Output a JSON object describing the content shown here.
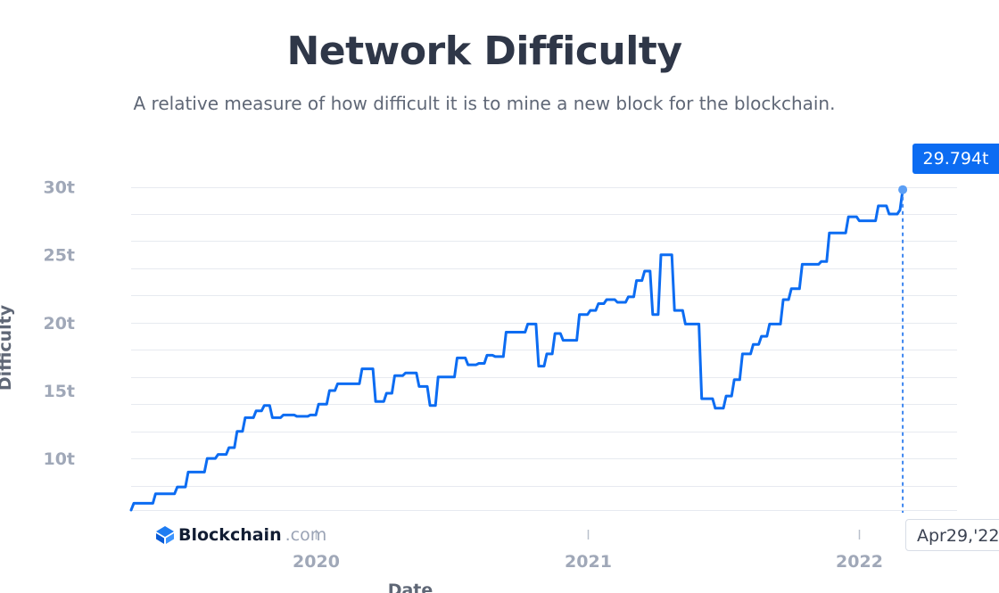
{
  "chart_data": {
    "type": "line",
    "title": "Network Difficulty",
    "subtitle": "A relative measure of how difficult it is to mine a new block for the blockchain.",
    "xlabel": "Date",
    "ylabel": "Difficulty",
    "x_tick_labels": [
      "2020",
      "2021",
      "2022"
    ],
    "y_ticks": [
      {
        "value": 10,
        "label": "10t"
      },
      {
        "value": 15,
        "label": "15t"
      },
      {
        "value": 20,
        "label": "20t"
      },
      {
        "value": 25,
        "label": "25t"
      },
      {
        "value": 30,
        "label": "30t"
      }
    ],
    "ylim": [
      6.2,
      30.3
    ],
    "xlim": [
      2019.32,
      2022.36
    ],
    "grid": true,
    "series": [
      {
        "name": "Difficulty",
        "color": "#0c6cf2",
        "points": [
          [
            2019.32,
            6.2
          ],
          [
            2019.33,
            6.7
          ],
          [
            2019.4,
            6.7
          ],
          [
            2019.41,
            7.4
          ],
          [
            2019.48,
            7.4
          ],
          [
            2019.49,
            7.9
          ],
          [
            2019.52,
            7.9
          ],
          [
            2019.53,
            9.0
          ],
          [
            2019.59,
            9.0
          ],
          [
            2019.6,
            10.0
          ],
          [
            2019.63,
            10.0
          ],
          [
            2019.64,
            10.3
          ],
          [
            2019.67,
            10.3
          ],
          [
            2019.68,
            10.8
          ],
          [
            2019.7,
            10.8
          ],
          [
            2019.71,
            12.0
          ],
          [
            2019.73,
            12.0
          ],
          [
            2019.74,
            13.0
          ],
          [
            2019.77,
            13.0
          ],
          [
            2019.78,
            13.5
          ],
          [
            2019.8,
            13.5
          ],
          [
            2019.81,
            13.9
          ],
          [
            2019.83,
            13.9
          ],
          [
            2019.84,
            13.0
          ],
          [
            2019.87,
            13.0
          ],
          [
            2019.88,
            13.2
          ],
          [
            2019.92,
            13.2
          ],
          [
            2019.93,
            13.1
          ],
          [
            2019.97,
            13.1
          ],
          [
            2019.98,
            13.2
          ],
          [
            2020.0,
            13.2
          ],
          [
            2020.01,
            14.0
          ],
          [
            2020.04,
            14.0
          ],
          [
            2020.05,
            15.0
          ],
          [
            2020.07,
            15.0
          ],
          [
            2020.08,
            15.5
          ],
          [
            2020.16,
            15.5
          ],
          [
            2020.17,
            16.6
          ],
          [
            2020.21,
            16.6
          ],
          [
            2020.22,
            14.2
          ],
          [
            2020.25,
            14.2
          ],
          [
            2020.26,
            14.8
          ],
          [
            2020.28,
            14.8
          ],
          [
            2020.29,
            16.1
          ],
          [
            2020.32,
            16.1
          ],
          [
            2020.33,
            16.3
          ],
          [
            2020.37,
            16.3
          ],
          [
            2020.38,
            15.3
          ],
          [
            2020.41,
            15.3
          ],
          [
            2020.42,
            13.9
          ],
          [
            2020.44,
            13.9
          ],
          [
            2020.45,
            16.0
          ],
          [
            2020.51,
            16.0
          ],
          [
            2020.52,
            17.4
          ],
          [
            2020.55,
            17.4
          ],
          [
            2020.56,
            16.9
          ],
          [
            2020.59,
            16.9
          ],
          [
            2020.6,
            17.0
          ],
          [
            2020.62,
            17.0
          ],
          [
            2020.63,
            17.6
          ],
          [
            2020.65,
            17.6
          ],
          [
            2020.66,
            17.5
          ],
          [
            2020.69,
            17.5
          ],
          [
            2020.7,
            19.3
          ],
          [
            2020.77,
            19.3
          ],
          [
            2020.78,
            19.9
          ],
          [
            2020.81,
            19.9
          ],
          [
            2020.82,
            16.8
          ],
          [
            2020.84,
            16.8
          ],
          [
            2020.85,
            17.7
          ],
          [
            2020.87,
            17.7
          ],
          [
            2020.88,
            19.2
          ],
          [
            2020.9,
            19.2
          ],
          [
            2020.91,
            18.7
          ],
          [
            2020.96,
            18.7
          ],
          [
            2020.97,
            20.6
          ],
          [
            2021.0,
            20.6
          ],
          [
            2021.01,
            20.9
          ],
          [
            2021.03,
            20.9
          ],
          [
            2021.04,
            21.4
          ],
          [
            2021.06,
            21.4
          ],
          [
            2021.07,
            21.7
          ],
          [
            2021.1,
            21.7
          ],
          [
            2021.11,
            21.5
          ],
          [
            2021.14,
            21.5
          ],
          [
            2021.15,
            21.9
          ],
          [
            2021.17,
            21.9
          ],
          [
            2021.18,
            23.1
          ],
          [
            2021.2,
            23.1
          ],
          [
            2021.21,
            23.8
          ],
          [
            2021.23,
            23.8
          ],
          [
            2021.24,
            20.6
          ],
          [
            2021.26,
            20.6
          ],
          [
            2021.27,
            25.0
          ],
          [
            2021.31,
            25.0
          ],
          [
            2021.32,
            20.9
          ],
          [
            2021.35,
            20.9
          ],
          [
            2021.36,
            19.9
          ],
          [
            2021.41,
            19.9
          ],
          [
            2021.42,
            14.4
          ],
          [
            2021.46,
            14.4
          ],
          [
            2021.47,
            13.7
          ],
          [
            2021.5,
            13.7
          ],
          [
            2021.51,
            14.6
          ],
          [
            2021.53,
            14.6
          ],
          [
            2021.54,
            15.8
          ],
          [
            2021.56,
            15.8
          ],
          [
            2021.57,
            17.7
          ],
          [
            2021.6,
            17.7
          ],
          [
            2021.61,
            18.4
          ],
          [
            2021.63,
            18.4
          ],
          [
            2021.64,
            19.0
          ],
          [
            2021.66,
            19.0
          ],
          [
            2021.67,
            19.9
          ],
          [
            2021.71,
            19.9
          ],
          [
            2021.72,
            21.7
          ],
          [
            2021.74,
            21.7
          ],
          [
            2021.75,
            22.5
          ],
          [
            2021.78,
            22.5
          ],
          [
            2021.79,
            24.3
          ],
          [
            2021.85,
            24.3
          ],
          [
            2021.86,
            24.5
          ],
          [
            2021.88,
            24.5
          ],
          [
            2021.89,
            26.6
          ],
          [
            2021.95,
            26.6
          ],
          [
            2021.96,
            27.8
          ],
          [
            2021.99,
            27.8
          ],
          [
            2022.0,
            27.5
          ],
          [
            2022.06,
            27.5
          ],
          [
            2022.07,
            28.6
          ],
          [
            2022.1,
            28.6
          ],
          [
            2022.11,
            28.0
          ],
          [
            2022.14,
            28.0
          ],
          [
            2022.15,
            28.3
          ],
          [
            2022.16,
            29.794
          ]
        ]
      }
    ],
    "hover": {
      "value_label": "29.794t",
      "date_label": "Apr29,'22",
      "x": 2022.16,
      "y": 29.794
    }
  },
  "brand": {
    "name": "Blockchain",
    "suffix": ".com"
  }
}
